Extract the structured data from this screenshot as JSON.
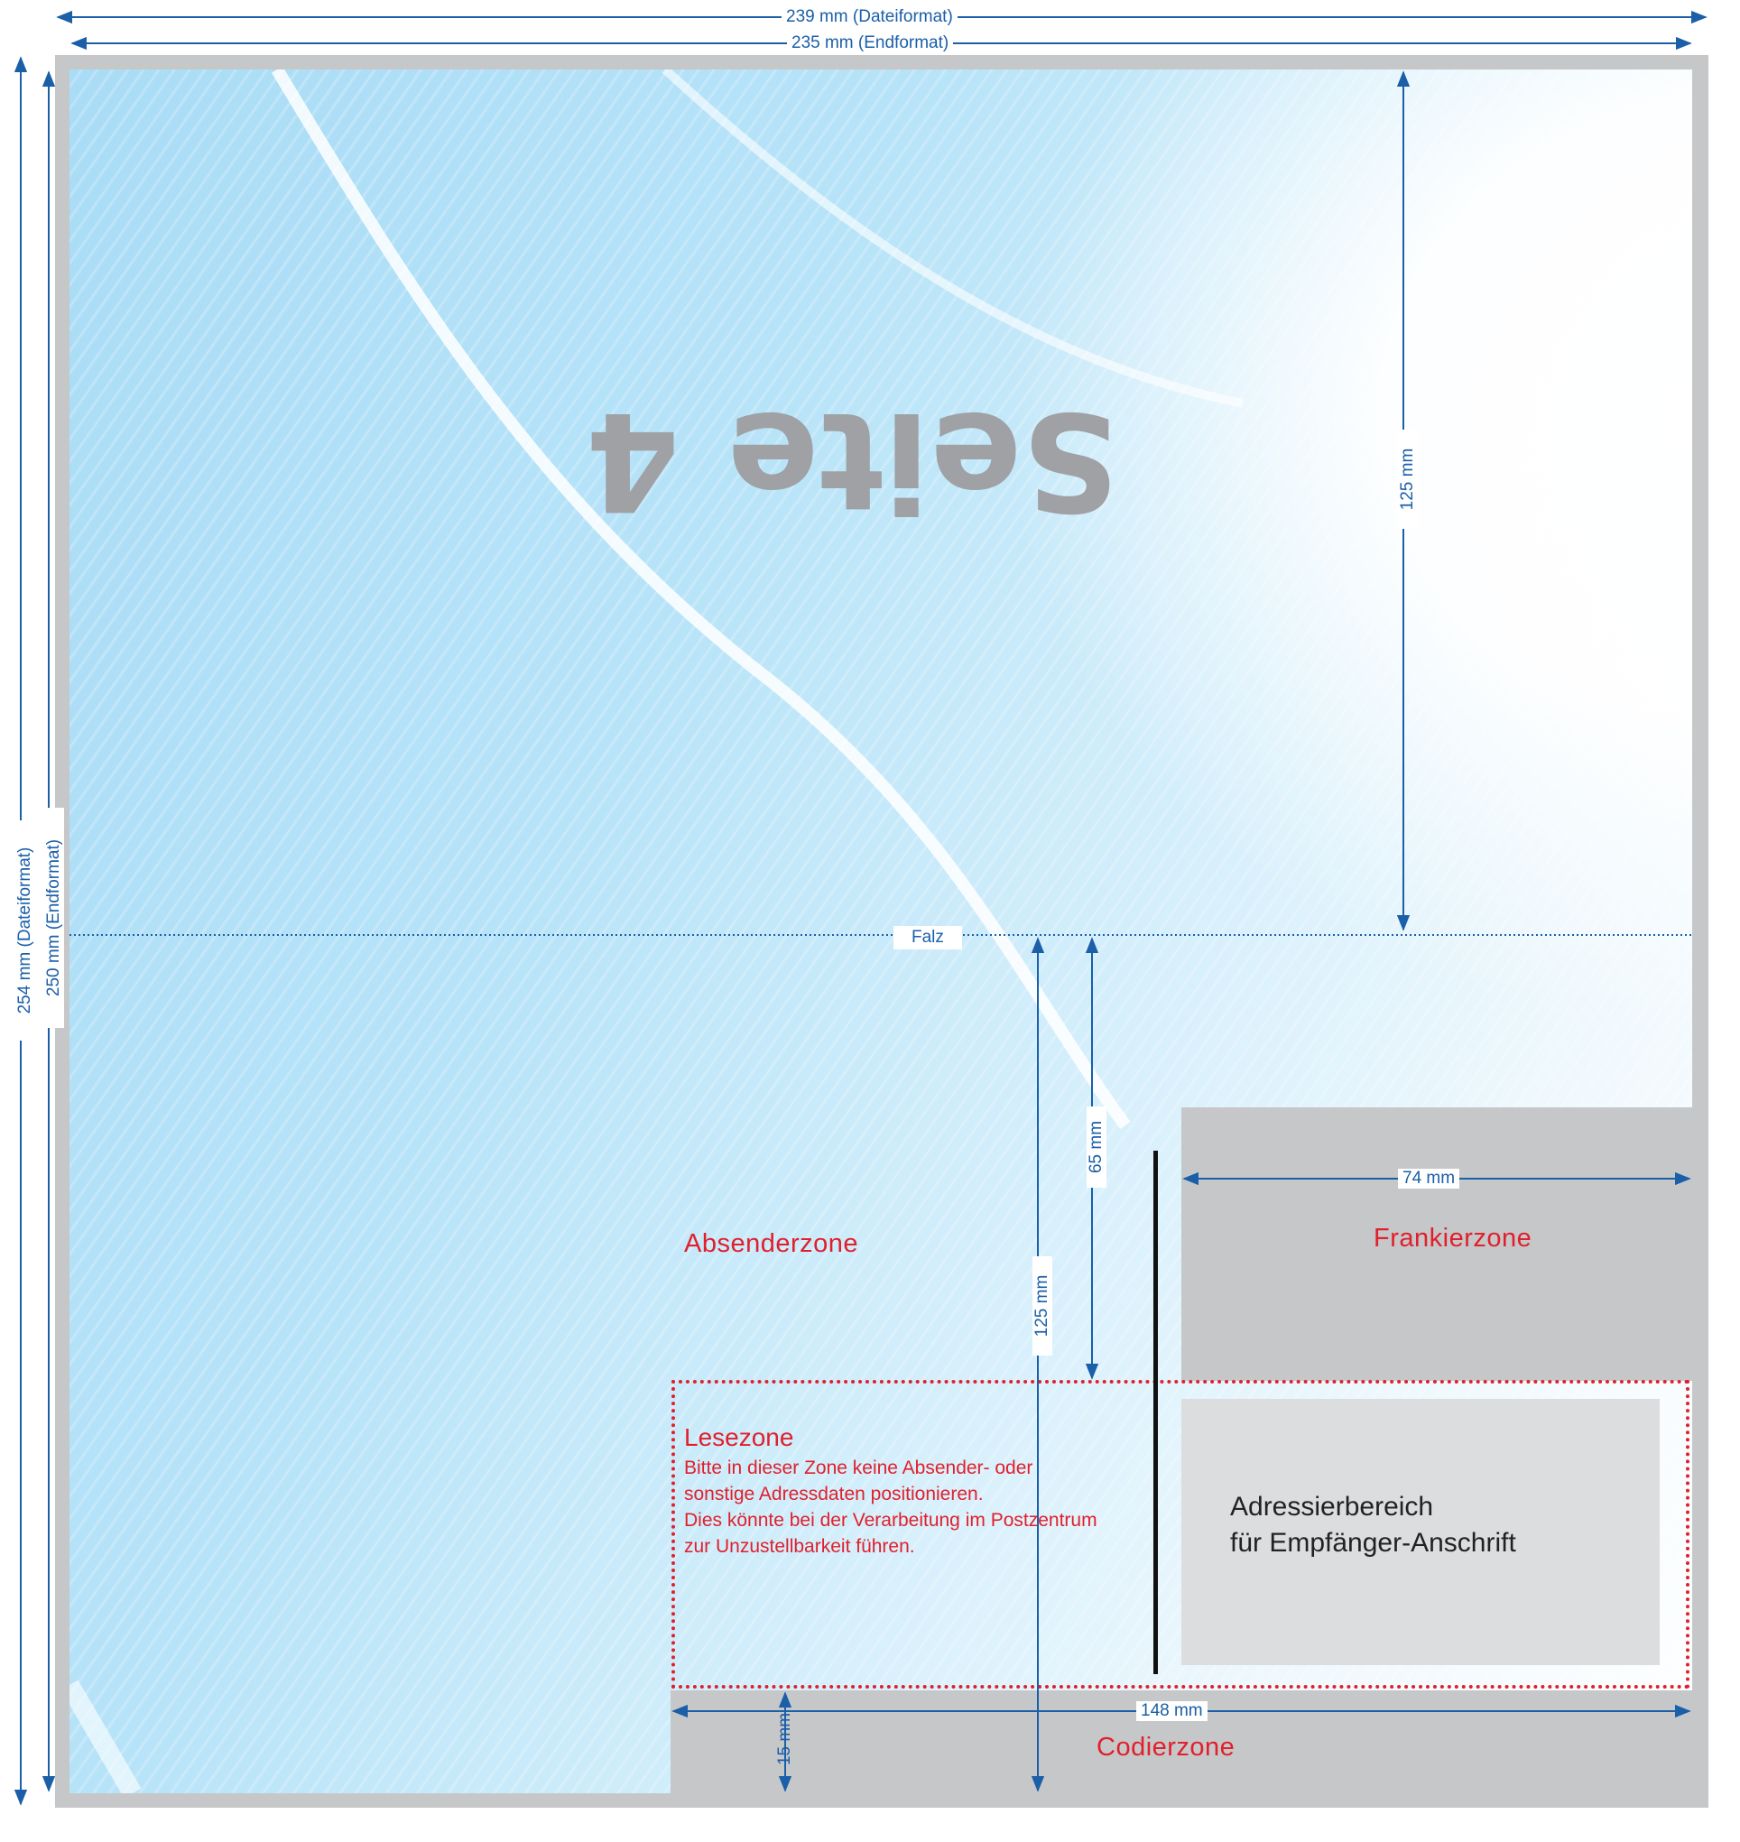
{
  "page_title": "Seite 4",
  "dimensions": {
    "top_file_format": "239 mm (Dateiformat)",
    "top_end_format": "235 mm (Endformat)",
    "left_file_format": "254 mm (Dateiformat)",
    "left_end_format": "250 mm (Endformat)",
    "upper_right_height": "125 mm",
    "lower_height": "125 mm",
    "sender_height": "65 mm",
    "frankier_width": "74 mm",
    "lesezone_width": "148 mm",
    "codier_height": "15 mm"
  },
  "fold_label": "Falz",
  "zones": {
    "absender": "Absenderzone",
    "frankier": "Frankierzone",
    "codier": "Codierzone",
    "lese_title": "Lesezone",
    "lese_text": [
      "Bitte in dieser Zone keine Absender- oder",
      "sonstige Adressdaten positionieren.",
      "Dies könnte bei der Verarbeitung im Postzentrum",
      "zur Unzustellbarkeit führen."
    ],
    "address_lines": [
      "Adressierbereich",
      "für Empfänger-Anschrift"
    ]
  },
  "colors": {
    "dimension_blue": "#1a5fa8",
    "zone_red": "#e0202c",
    "frame_gray": "#c6c7c9",
    "address_gray": "#dcdddf",
    "title_gray": "#9fa1a4"
  }
}
